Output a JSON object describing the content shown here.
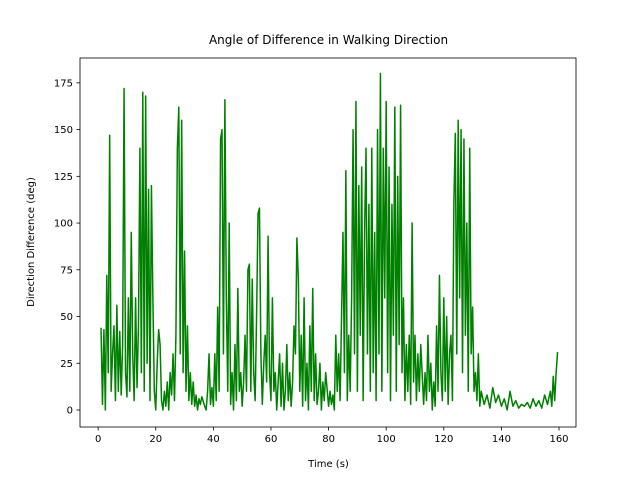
{
  "chart_data": {
    "type": "line",
    "title": "Angle of Difference in Walking Direction",
    "x_label": "Time (s)",
    "y_label": "Direction Difference (deg)",
    "xlim": [
      -6.3,
      165.9
    ],
    "ylim": [
      -9.1,
      188.3
    ],
    "xticks": [
      0,
      20,
      40,
      60,
      80,
      100,
      120,
      140,
      160
    ],
    "yticks": [
      0,
      25,
      50,
      75,
      100,
      125,
      150,
      175
    ],
    "grid": false,
    "series": [
      {
        "color": "#008000",
        "x": [
          1,
          1.5,
          2,
          2.5,
          3,
          3.5,
          4,
          4.5,
          5,
          5.5,
          6,
          6.5,
          7,
          7.5,
          8,
          8.5,
          9,
          9.5,
          10,
          10.5,
          11,
          11.5,
          12,
          12.5,
          13,
          13.5,
          14,
          14.5,
          15,
          15.5,
          16,
          16.5,
          17,
          17.5,
          18,
          18.5,
          19,
          19.5,
          20,
          20.5,
          21,
          21.5,
          22,
          22.5,
          23,
          23.5,
          24,
          24.5,
          25,
          25.5,
          26,
          26.5,
          27,
          27.5,
          28,
          28.5,
          29,
          29.5,
          30,
          30.5,
          31,
          31.5,
          32,
          32.5,
          33,
          33.5,
          34,
          34.5,
          35,
          35.5,
          36,
          37,
          37.5,
          38,
          38.5,
          39,
          39.5,
          40,
          40.5,
          41,
          41.5,
          42,
          42.5,
          43,
          43.5,
          44,
          44.5,
          45,
          45.5,
          46,
          46.5,
          47,
          47.5,
          48,
          48.5,
          49,
          49.5,
          50,
          50.5,
          51,
          51.5,
          52,
          52.5,
          53,
          53.5,
          54,
          54.5,
          55,
          55.5,
          56,
          56.5,
          57,
          57.5,
          58,
          58.5,
          59,
          59.5,
          60,
          60.5,
          61,
          61.5,
          62,
          62.5,
          63,
          63.5,
          64,
          64.5,
          65,
          65.5,
          66,
          66.5,
          67,
          67.5,
          68,
          68.5,
          69,
          69.5,
          70,
          70.5,
          71,
          71.5,
          72,
          72.5,
          73,
          73.5,
          74,
          74.5,
          75,
          75.5,
          76,
          76.5,
          77,
          77.5,
          78,
          78.5,
          79,
          80,
          80.5,
          81,
          81.5,
          82,
          82.5,
          83,
          83.5,
          84,
          84.5,
          85,
          85.5,
          86,
          86.5,
          87,
          87.5,
          88,
          88.5,
          89,
          89.5,
          90,
          90.5,
          91,
          91.5,
          92,
          92.5,
          93,
          93.5,
          94,
          94.5,
          95,
          95.5,
          96,
          96.5,
          97,
          97.5,
          98,
          98.5,
          99,
          99.5,
          100,
          100.5,
          101,
          101.5,
          102,
          102.5,
          103,
          103.5,
          104,
          104.5,
          105,
          105.5,
          106,
          106.5,
          107,
          107.5,
          108,
          108.5,
          109,
          109.5,
          110,
          110.5,
          111,
          111.5,
          112,
          113,
          113.5,
          114,
          114.5,
          115,
          115.5,
          116,
          116.5,
          117,
          117.5,
          118,
          118.5,
          119,
          119.5,
          120,
          120.5,
          121,
          121.5,
          122,
          122.5,
          123,
          123.5,
          124,
          124.5,
          125,
          125.5,
          126,
          126.5,
          127,
          127.5,
          128,
          128.5,
          129,
          129.5,
          130,
          130.5,
          131,
          131.5,
          132,
          132.5,
          133,
          134,
          135,
          136,
          137,
          138,
          139,
          140,
          141,
          142,
          143,
          144,
          145,
          146,
          147,
          148,
          149,
          150,
          151,
          152,
          153,
          154,
          155,
          156,
          157,
          157.5,
          158,
          158.5,
          159,
          159.5
        ],
        "values": [
          44,
          3,
          43,
          0,
          72,
          20,
          147,
          10,
          30,
          45,
          5,
          56,
          10,
          42,
          8,
          35,
          172,
          20,
          7,
          60,
          10,
          95,
          30,
          5,
          60,
          12,
          45,
          140,
          20,
          170,
          10,
          168,
          25,
          118,
          5,
          120,
          60,
          10,
          0,
          25,
          43,
          35,
          5,
          0,
          10,
          2,
          15,
          0,
          20,
          8,
          30,
          5,
          40,
          140,
          162,
          30,
          155,
          20,
          85,
          10,
          45,
          5,
          20,
          3,
          15,
          2,
          8,
          0,
          6,
          3,
          7,
          2,
          0,
          10,
          30,
          3,
          12,
          2,
          30,
          5,
          55,
          10,
          145,
          150,
          30,
          166,
          60,
          10,
          100,
          3,
          20,
          0,
          35,
          5,
          65,
          10,
          20,
          2,
          15,
          40,
          10,
          75,
          78,
          10,
          70,
          20,
          5,
          50,
          105,
          108,
          30,
          3,
          25,
          40,
          15,
          93,
          20,
          5,
          60,
          10,
          20,
          0,
          15,
          30,
          2,
          25,
          0,
          10,
          35,
          5,
          20,
          2,
          15,
          45,
          30,
          92,
          70,
          10,
          40,
          2,
          60,
          5,
          25,
          0,
          45,
          10,
          65,
          5,
          30,
          3,
          10,
          25,
          0,
          15,
          5,
          20,
          2,
          10,
          3,
          8,
          0,
          40,
          10,
          30,
          5,
          50,
          95,
          20,
          128,
          5,
          40,
          10,
          60,
          150,
          30,
          165,
          10,
          120,
          40,
          130,
          5,
          95,
          140,
          30,
          110,
          10,
          140,
          20,
          95,
          5,
          150,
          30,
          180,
          10,
          140,
          60,
          165,
          20,
          130,
          5,
          110,
          40,
          162,
          10,
          125,
          35,
          163,
          20,
          60,
          5,
          35,
          10,
          40,
          3,
          100,
          15,
          40,
          5,
          30,
          10,
          35,
          3,
          20,
          5,
          40,
          10,
          25,
          0,
          15,
          2,
          45,
          10,
          72,
          20,
          5,
          60,
          10,
          50,
          3,
          30,
          40,
          5,
          110,
          148,
          30,
          155,
          60,
          150,
          20,
          145,
          40,
          100,
          10,
          140,
          30,
          55,
          10,
          20,
          5,
          30,
          2,
          10,
          3,
          8,
          1,
          12,
          4,
          8,
          2,
          6,
          0,
          10,
          2,
          5,
          1,
          3,
          2,
          4,
          1,
          6,
          2,
          5,
          1,
          8,
          3,
          10,
          2,
          18,
          5,
          20,
          31
        ]
      }
    ]
  }
}
